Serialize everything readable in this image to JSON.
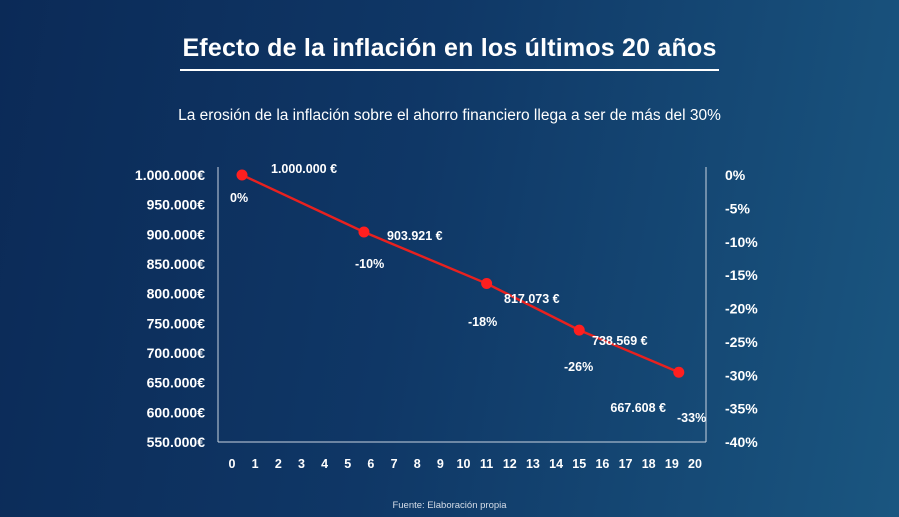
{
  "title": "Efecto de la inflación en los últimos 20 años",
  "subtitle": "La erosión de la inflación sobre el ahorro financiero llega a ser de más del 30%",
  "source": "Fuente: Elaboración propia",
  "colors": {
    "line": "#e8211f",
    "point": "#ff1f1f",
    "axis": "#c9d3e0"
  },
  "chart_data": {
    "type": "line",
    "x": [
      0,
      5.7,
      11,
      15,
      19.3
    ],
    "values": [
      1000000,
      903921,
      817073,
      738569,
      667608
    ],
    "value_labels": [
      "1.000.000 €",
      "903.921 €",
      "817.073 €",
      "738.569 €",
      "667.608 €"
    ],
    "pct_labels": [
      "0%",
      "-10%",
      "-18%",
      "-26%",
      "-33%"
    ],
    "x_ticks": [
      "0",
      "1",
      "2",
      "3",
      "4",
      "5",
      "6",
      "7",
      "8",
      "9",
      "10",
      "11",
      "12",
      "13",
      "14",
      "15",
      "16",
      "17",
      "18",
      "19",
      "20"
    ],
    "xlim": [
      0,
      20
    ],
    "y_ticks": [
      "1.000.000€",
      "950.000€",
      "900.000€",
      "850.000€",
      "800.000€",
      "750.000€",
      "700.000€",
      "650.000€",
      "600.000€",
      "550.000€"
    ],
    "ylim": [
      550000,
      1000000
    ],
    "y2_ticks": [
      "0%",
      "-5%",
      "-10%",
      "-15%",
      "-20%",
      "-25%",
      "-30%",
      "-35%",
      "-40%"
    ],
    "y2lim": [
      -40,
      0
    ],
    "grid": false,
    "legend": "none"
  }
}
